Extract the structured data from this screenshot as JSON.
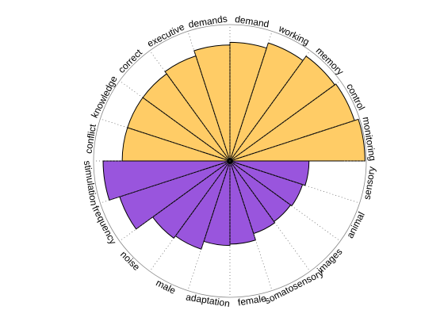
{
  "chart_data": {
    "type": "polar-bar",
    "title": "",
    "rmax": 10,
    "grid": true,
    "colors": {
      "top": "#FFCC66",
      "bottom": "#9955DD",
      "edge": "#000000",
      "grid": "#555555"
    },
    "slice_labels": [
      "demand",
      "working",
      "memory",
      "control",
      "monitoring",
      "sensory",
      "animal",
      "images",
      "somatosensory",
      "female",
      "adaptation",
      "male",
      "noise",
      "frequency",
      "stimulation",
      "conflict",
      "knowledge",
      "correct",
      "executive",
      "demands"
    ],
    "top_series": {
      "categories": [
        "monitoring",
        "control",
        "memory",
        "working",
        "demand",
        "demands",
        "executive",
        "correct",
        "knowledge",
        "conflict"
      ],
      "values": [
        9.9,
        9.6,
        9.5,
        9.1,
        8.7,
        8.5,
        8.1,
        7.9,
        7.9,
        7.9
      ]
    },
    "bottom_series": {
      "categories": [
        "sensory",
        "animal",
        "images",
        "somatosensory",
        "female",
        "adaptation",
        "male",
        "noise",
        "frequency",
        "stimulation"
      ],
      "values": [
        5.8,
        5.6,
        5.5,
        5.6,
        6.1,
        6.2,
        6.8,
        7.0,
        8.5,
        9.3
      ]
    }
  }
}
